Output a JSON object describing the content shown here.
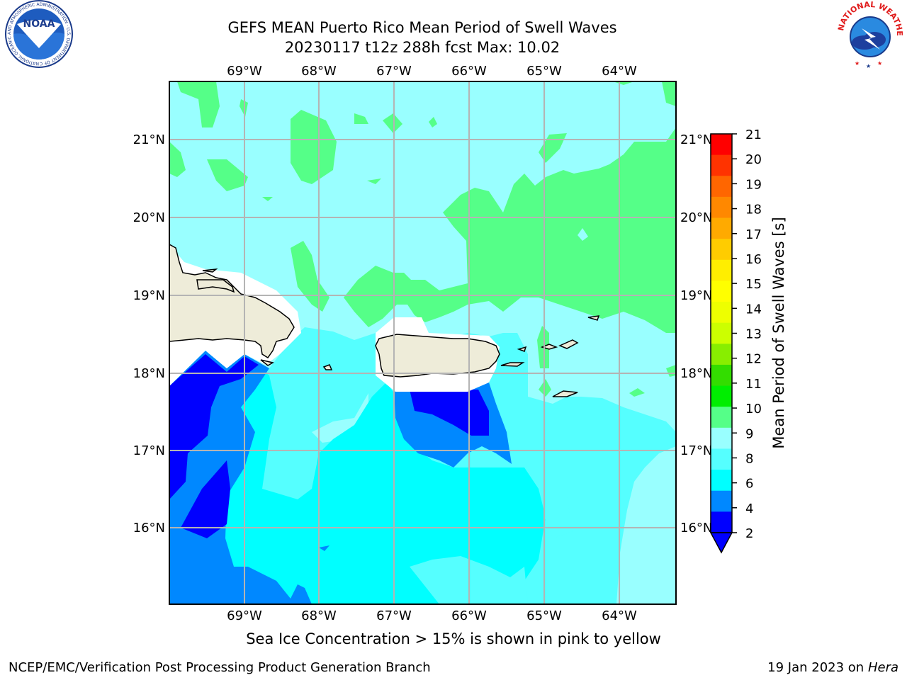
{
  "header": {
    "title_line1": "GEFS MEAN Puerto Rico Mean Period of Swell Waves",
    "title_line2": "20230117 t12z 288h fcst   Max: 10.02"
  },
  "map": {
    "top_lon_labels": [
      "69°W",
      "68°W",
      "67°W",
      "66°W",
      "65°W",
      "64°W"
    ],
    "bottom_lon_labels": [
      "69°W",
      "68°W",
      "67°W",
      "66°W",
      "65°W",
      "64°W"
    ],
    "left_lat_labels": [
      "21°N",
      "20°N",
      "19°N",
      "18°N",
      "17°N",
      "16°N"
    ],
    "right_lat_labels": [
      "21°N",
      "20°N",
      "19°N",
      "18°N",
      "17°N",
      "16°N"
    ],
    "land_color": "#eeecd9",
    "coast_color": "#000000",
    "grid_color": "#b4b4b4"
  },
  "colorbar": {
    "label": "Mean Period of Swell Waves [s]",
    "ticks": [
      "21",
      "20",
      "19",
      "18",
      "17",
      "16",
      "15",
      "14",
      "13",
      "12",
      "11",
      "10",
      "9",
      "8",
      "6",
      "4",
      "2"
    ],
    "colors": [
      "#ff0000",
      "#ff3300",
      "#ff6600",
      "#ff8800",
      "#ffaa00",
      "#ffcc00",
      "#ffee00",
      "#ffff00",
      "#eeff00",
      "#ccff00",
      "#88ee00",
      "#33dd00",
      "#00ee00",
      "#55ff88",
      "#99ffff",
      "#55ffff",
      "#00ffff",
      "#0088ff",
      "#0000ff"
    ]
  },
  "logos": {
    "noaa_text": "NOAA",
    "noaa_ring_text": "NATIONAL OCEANIC AND ATMOSPHERIC ADMINISTRATION · U.S. DEPARTMENT OF COMMERCE",
    "nws_ring_text": "NATIONAL WEATHER SERVICE"
  },
  "footer": {
    "note": "Sea Ice Concentration > 15% is shown in pink to yellow",
    "left": "NCEP/EMC/Verification Post Processing Product Generation Branch",
    "right_date": "19 Jan 2023 on ",
    "right_host": "Hera"
  }
}
